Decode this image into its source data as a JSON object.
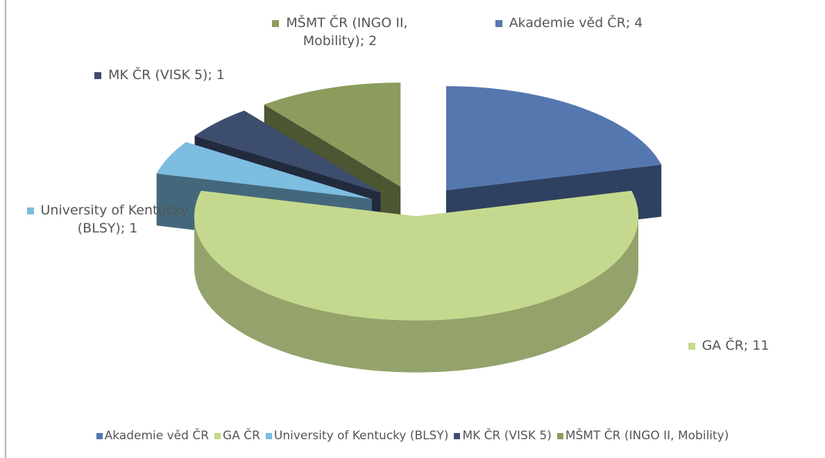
{
  "chart_data": {
    "type": "pie",
    "categories": [
      "Akademie věd ČR",
      "GA ČR",
      "University of Kentucky (BLSY)",
      "MK ČR (VISK 5)",
      "MŠMT ČR (INGO II, Mobility)"
    ],
    "values": [
      4,
      11,
      1,
      1,
      2
    ],
    "value_labels": [
      "Akademie věd ČR; 4",
      "GA ČR; 11",
      "University of Kentucky (BLSY); 1",
      "MK ČR (VISK 5); 1",
      "MŠMT ČR (INGO II, Mobility); 2"
    ],
    "colors": [
      "#5577b0",
      "#c5d98e",
      "#7cbde0",
      "#3d4d6e",
      "#8c9c5c"
    ],
    "legend": "bottom"
  }
}
